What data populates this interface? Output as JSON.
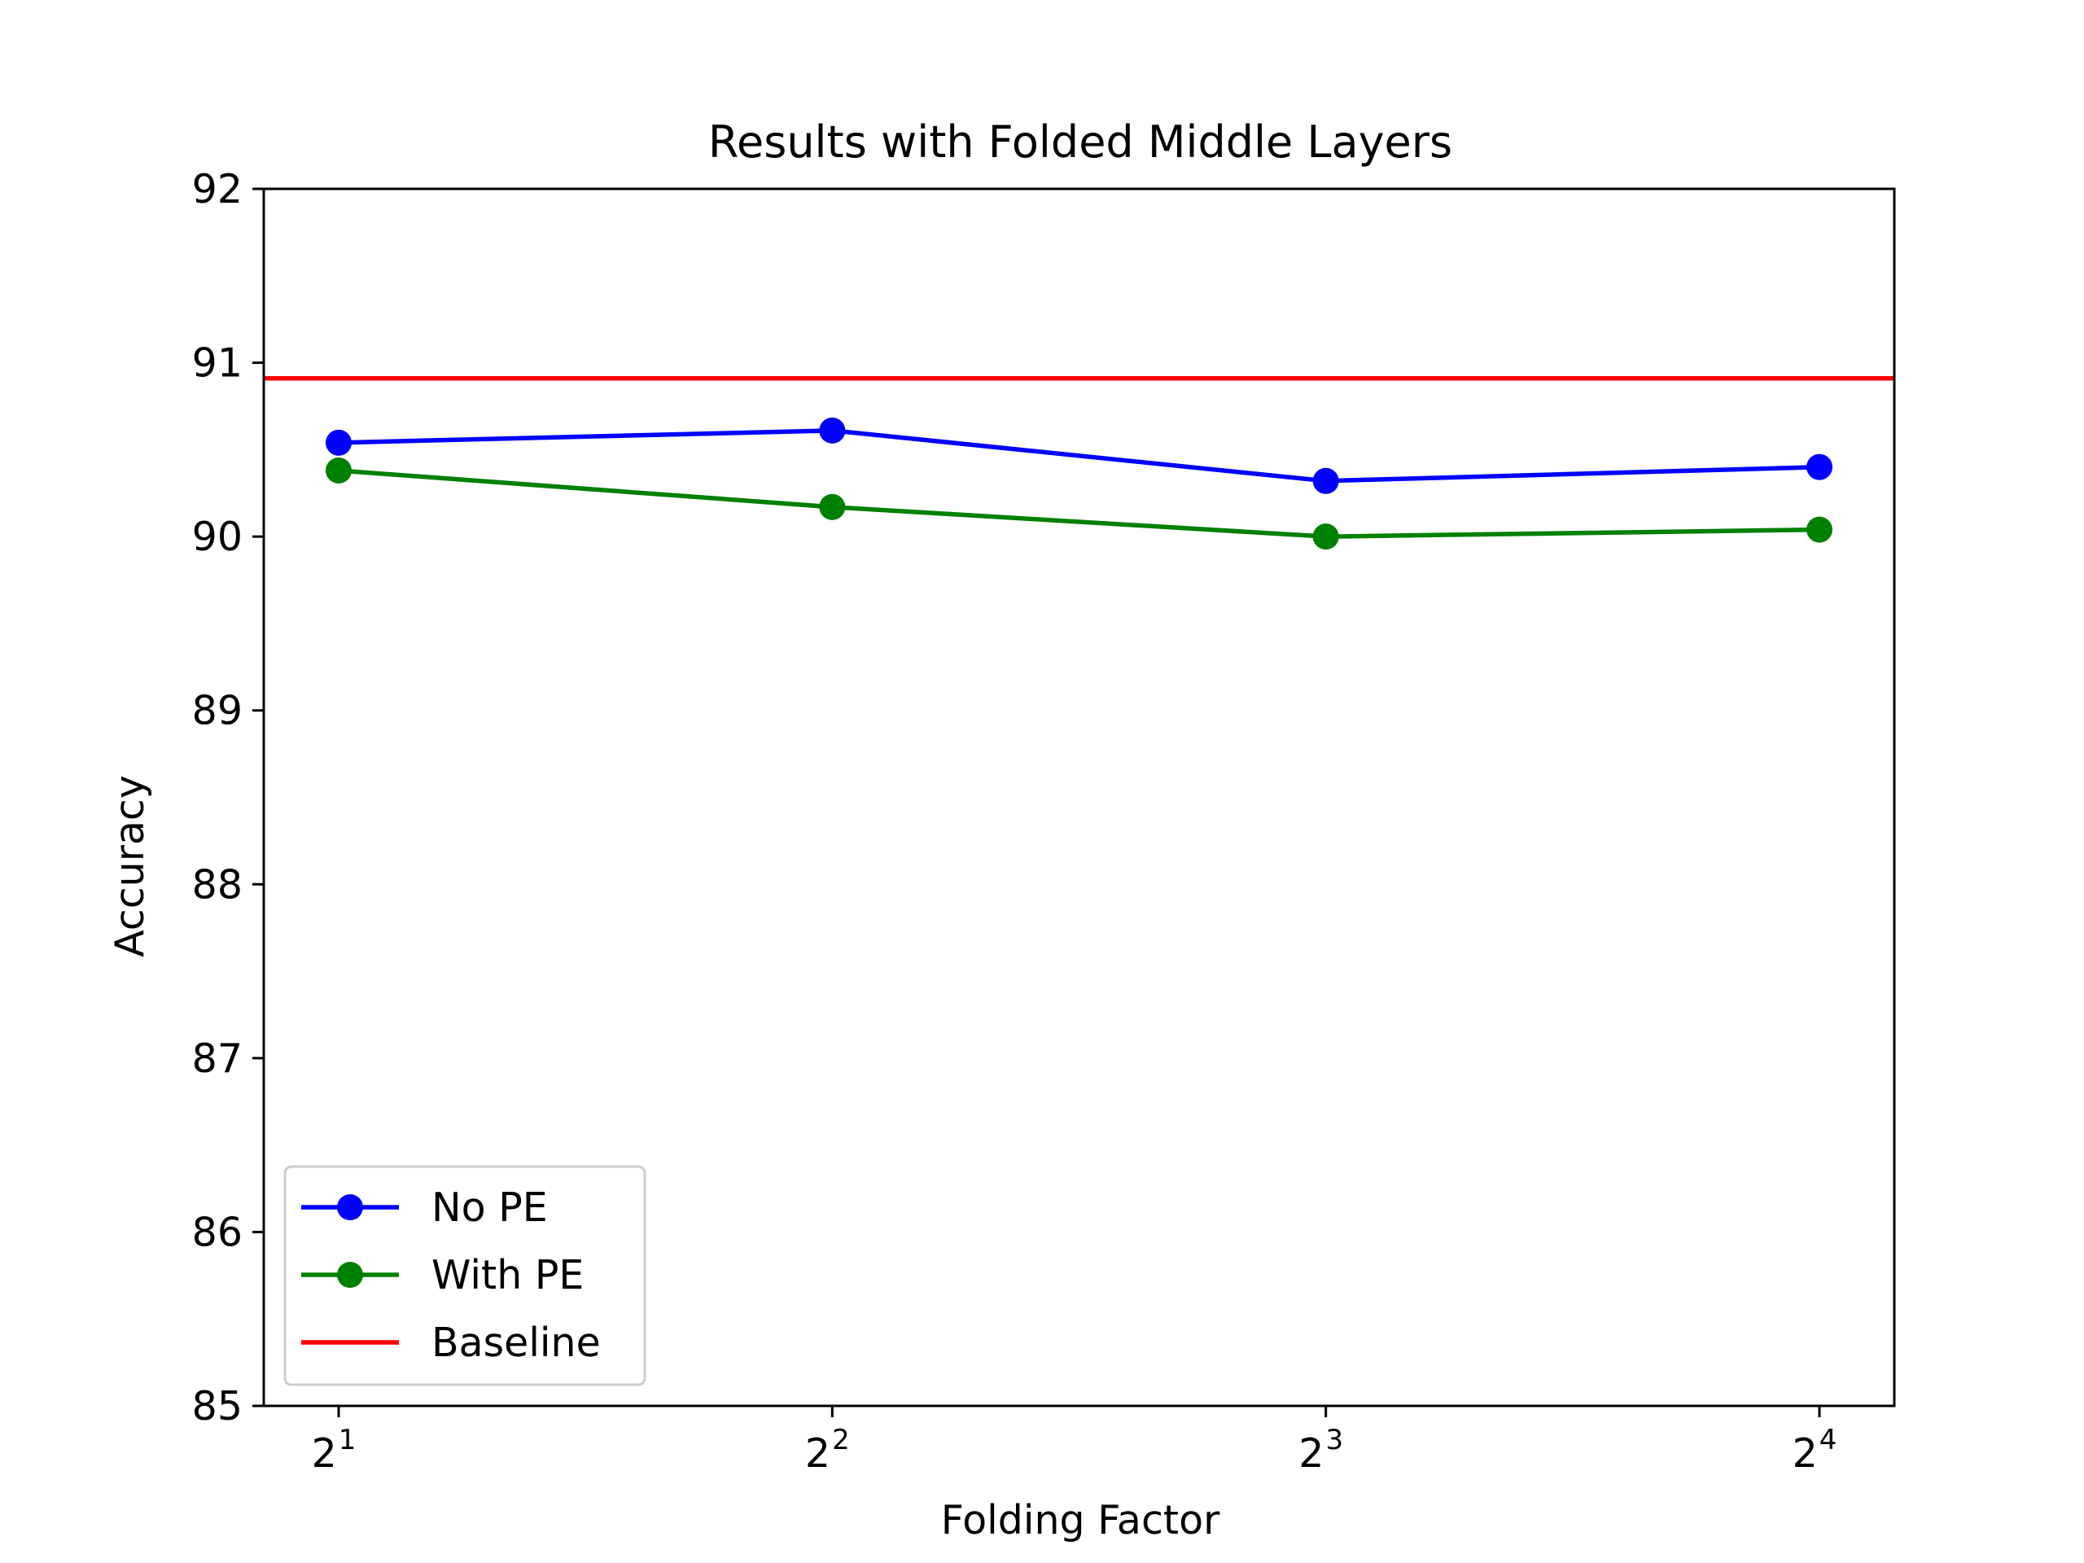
{
  "chart_data": {
    "type": "line",
    "title": "Results with Folded Middle Layers",
    "xlabel": "Folding Factor",
    "ylabel": "Accuracy",
    "x": [
      2,
      4,
      8,
      16
    ],
    "x_scale": "log2",
    "x_tick_labels": [
      {
        "base": "2",
        "exp": "1"
      },
      {
        "base": "2",
        "exp": "2"
      },
      {
        "base": "2",
        "exp": "3"
      },
      {
        "base": "2",
        "exp": "4"
      }
    ],
    "ylim": [
      85,
      92
    ],
    "y_ticks": [
      "85",
      "86",
      "87",
      "88",
      "89",
      "90",
      "91",
      "92"
    ],
    "grid": false,
    "legend_position": "lower-left",
    "series": [
      {
        "name": "No PE",
        "color": "#0000ff",
        "marker": "circle",
        "values": [
          90.54,
          90.61,
          90.32,
          90.4
        ]
      },
      {
        "name": "With PE",
        "color": "#008000",
        "marker": "circle",
        "values": [
          90.38,
          90.17,
          90.0,
          90.04
        ]
      }
    ],
    "reference_lines": [
      {
        "name": "Baseline",
        "color": "#ff0000",
        "y": 90.91
      }
    ]
  }
}
